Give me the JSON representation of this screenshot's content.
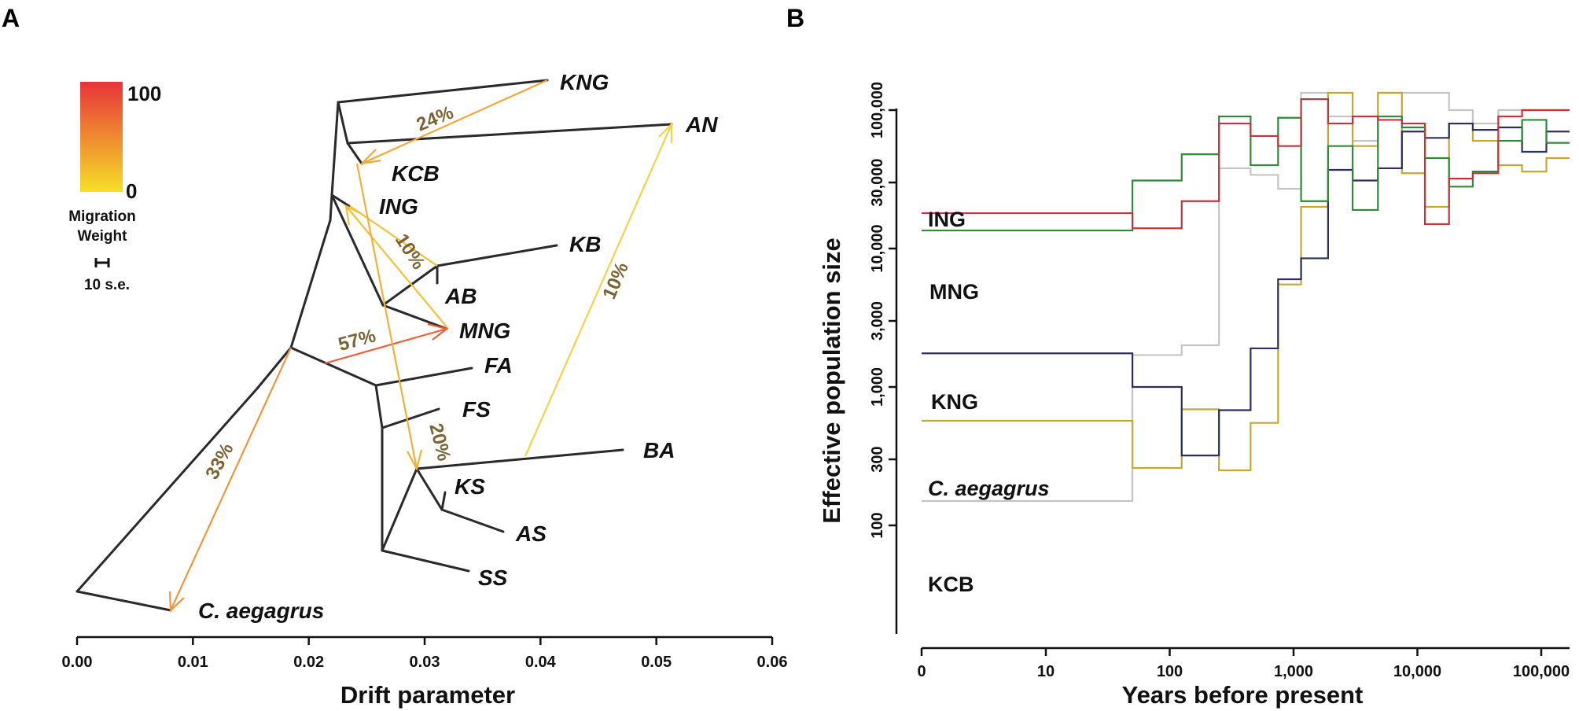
{
  "figure": {
    "panel_a_letter": "A",
    "panel_b_letter": "B"
  },
  "chart_data": [
    {
      "type": "other",
      "subtype": "admixture-tree",
      "xlabel": "Drift parameter",
      "xlim": [
        0,
        0.06
      ],
      "xticks": [
        "0.00",
        "0.01",
        "0.02",
        "0.03",
        "0.04",
        "0.05",
        "0.06"
      ],
      "legend": {
        "title_line1": "Migration",
        "title_line2": "Weight",
        "max_label": "100",
        "min_label": "0",
        "scale_label": "10 s.e.",
        "color_high": "#e8333a",
        "color_low": "#f6e027"
      },
      "populations": [
        {
          "name": "KNG",
          "drift": 0.0402
        },
        {
          "name": "AN",
          "drift": 0.0512
        },
        {
          "name": "KCB",
          "drift": 0.0245
        },
        {
          "name": "ING",
          "drift": 0.0234
        },
        {
          "name": "KB",
          "drift": 0.0412
        },
        {
          "name": "AB",
          "drift": 0.0311
        },
        {
          "name": "MNG",
          "drift": 0.0318
        },
        {
          "name": "FA",
          "drift": 0.0355
        },
        {
          "name": "FS",
          "drift": 0.0325
        },
        {
          "name": "BA",
          "drift": 0.0475
        },
        {
          "name": "KS",
          "drift": 0.0318
        },
        {
          "name": "AS",
          "drift": 0.0367
        },
        {
          "name": "SS",
          "drift": 0.0338
        },
        {
          "name": "C. aegagrus",
          "drift": 0.0081
        }
      ],
      "migration_edges": [
        {
          "label": "24%",
          "weight": 24
        },
        {
          "label": "10%",
          "weight": 10,
          "id": "to-ING"
        },
        {
          "label": "57%",
          "weight": 57
        },
        {
          "label": "10%",
          "weight": 10,
          "id": "to-AN"
        },
        {
          "label": "20%",
          "weight": 20
        },
        {
          "label": "33%",
          "weight": 33
        }
      ]
    },
    {
      "type": "line",
      "subtype": "step",
      "xlabel": "Years before present",
      "ylabel": "Effective population size",
      "xscale": "log (0 at origin)",
      "yscale": "log",
      "xticks": [
        "0",
        "10",
        "100",
        "1,000",
        "10,000",
        "100,000"
      ],
      "yticks": [
        "100",
        "300",
        "1,000",
        "3,000",
        "10,000",
        "30,000",
        "100,000"
      ],
      "series": [
        {
          "name": "ING",
          "color": "#c8323c",
          "steps": [
            [
              0,
              18000
            ],
            [
              50,
              14000
            ],
            [
              125,
              22000
            ],
            [
              250,
              80000
            ],
            [
              450,
              65000
            ],
            [
              750,
              55000
            ],
            [
              1150,
              120000
            ],
            [
              1900,
              80000
            ],
            [
              3000,
              90000
            ],
            [
              4800,
              85000
            ],
            [
              7500,
              80000
            ],
            [
              11500,
              15000
            ],
            [
              18000,
              32000
            ],
            [
              28000,
              35000
            ],
            [
              45000,
              90000
            ],
            [
              70000,
              100000
            ],
            [
              110000,
              100000
            ]
          ]
        },
        {
          "name": "MNG",
          "color": "#2f8a3a",
          "steps": [
            [
              0,
              13500
            ],
            [
              50,
              31000
            ],
            [
              125,
              48000
            ],
            [
              250,
              90000
            ],
            [
              450,
              40000
            ],
            [
              750,
              88000
            ],
            [
              1150,
              22000
            ],
            [
              1900,
              55000
            ],
            [
              3000,
              19000
            ],
            [
              4800,
              90000
            ],
            [
              7500,
              75000
            ],
            [
              11500,
              45000
            ],
            [
              18000,
              28000
            ],
            [
              28000,
              36000
            ],
            [
              45000,
              60000
            ],
            [
              70000,
              85000
            ],
            [
              110000,
              58000
            ]
          ]
        },
        {
          "name": "KNG",
          "color": "#2e2f5e",
          "steps": [
            [
              0,
              1750
            ],
            [
              50,
              1000
            ],
            [
              125,
              320
            ],
            [
              250,
              680
            ],
            [
              450,
              1900
            ],
            [
              750,
              6000
            ],
            [
              1150,
              8500
            ],
            [
              1900,
              37000
            ],
            [
              3000,
              31000
            ],
            [
              4800,
              38000
            ],
            [
              7500,
              70000
            ],
            [
              11500,
              63000
            ],
            [
              18000,
              80000
            ],
            [
              28000,
              72000
            ],
            [
              45000,
              75000
            ],
            [
              70000,
              50000
            ],
            [
              110000,
              70000
            ]
          ]
        },
        {
          "name": "C. aegagrus",
          "color": "#c8a82a",
          "steps": [
            [
              0,
              570
            ],
            [
              50,
              260
            ],
            [
              125,
              690
            ],
            [
              250,
              250
            ],
            [
              450,
              550
            ],
            [
              750,
              5500
            ],
            [
              1150,
              20000
            ],
            [
              1900,
              150000
            ],
            [
              3000,
              55000
            ],
            [
              4800,
              150000
            ],
            [
              7500,
              35000
            ],
            [
              11500,
              20000
            ],
            [
              18000,
              80000
            ],
            [
              28000,
              60000
            ],
            [
              45000,
              40000
            ],
            [
              70000,
              36000
            ],
            [
              110000,
              45000
            ]
          ]
        },
        {
          "name": "KCB",
          "color": "#c4c4c4",
          "steps": [
            [
              0,
              150
            ],
            [
              50,
              1700
            ],
            [
              125,
              2000
            ],
            [
              250,
              38000
            ],
            [
              450,
              34000
            ],
            [
              750,
              27000
            ],
            [
              1150,
              150000
            ],
            [
              1900,
              90000
            ],
            [
              3000,
              60000
            ],
            [
              4800,
              140000
            ],
            [
              7500,
              150000
            ],
            [
              11500,
              150000
            ],
            [
              18000,
              100000
            ],
            [
              28000,
              80000
            ],
            [
              45000,
              100000
            ],
            [
              70000,
              100000
            ],
            [
              110000,
              100000
            ]
          ]
        }
      ]
    }
  ]
}
